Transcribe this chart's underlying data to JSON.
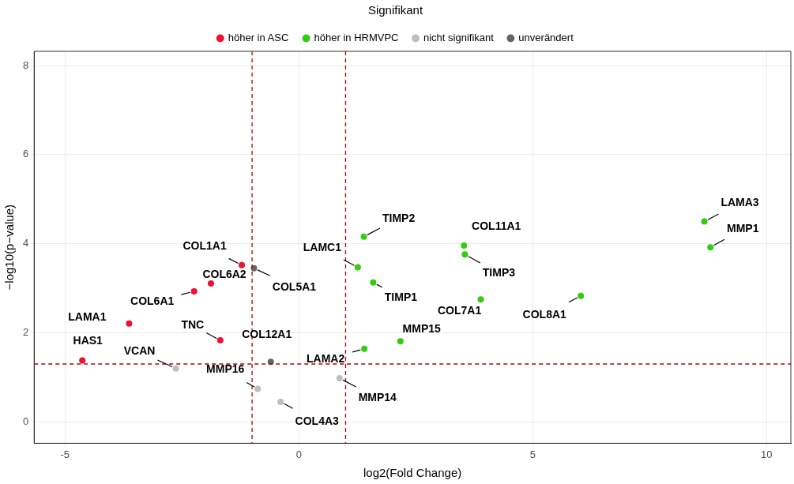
{
  "chart_data": {
    "type": "scatter",
    "xlabel": "log2(Fold Change)",
    "ylabel": "−log10(p−value)",
    "legend_title": "Signifikant",
    "legend": "top",
    "grid": true,
    "marker": "circle",
    "xlim": [
      -5.66,
      10.52
    ],
    "xticks": [
      -5,
      0,
      5,
      10
    ],
    "ylim": [
      -0.48,
      8.32
    ],
    "yticks": [
      0,
      2,
      4,
      6,
      8
    ],
    "series": [
      {
        "name": "höher in ASC",
        "color": "#ee1133",
        "x": [
          -1.22,
          -1.88,
          -2.24,
          -3.63,
          -1.68,
          -4.63
        ],
        "values": [
          3.52,
          3.11,
          2.93,
          2.21,
          1.83,
          1.38
        ]
      },
      {
        "name": "höher in HRMVPC",
        "color": "#33cc11",
        "x": [
          1.39,
          1.26,
          1.59,
          3.53,
          3.55,
          3.89,
          6.03,
          2.17,
          1.4,
          8.67,
          8.8
        ],
        "values": [
          4.16,
          3.47,
          3.13,
          3.96,
          3.76,
          2.75,
          2.83,
          1.81,
          1.64,
          4.5,
          3.92
        ]
      },
      {
        "name": "nicht signifikant",
        "color": "#bebebe",
        "x": [
          -2.63,
          -0.88,
          -0.39,
          0.87
        ],
        "values": [
          1.2,
          0.74,
          0.45,
          0.98
        ]
      },
      {
        "name": "unverändert",
        "color": "#666666",
        "x": [
          -0.96,
          -0.6
        ],
        "values": [
          3.45,
          1.35
        ]
      }
    ],
    "ref_lines": [
      {
        "axis": "x",
        "value": -1,
        "color": "#bb0000",
        "line_style": "dashed"
      },
      {
        "axis": "x",
        "value": 1,
        "color": "#bb0000",
        "line_style": "dashed"
      },
      {
        "axis": "y",
        "value": 1.3,
        "color": "#bb0000",
        "line_style": "dashed"
      }
    ],
    "annotations": [
      {
        "text": "COL1A1",
        "x": -1.22,
        "y": 3.52
      },
      {
        "text": "COL6A2",
        "x": -1.88,
        "y": 3.11
      },
      {
        "text": "COL6A1",
        "x": -2.24,
        "y": 2.93
      },
      {
        "text": "LAMA1",
        "x": -3.63,
        "y": 2.21
      },
      {
        "text": "TNC",
        "x": -1.68,
        "y": 1.83
      },
      {
        "text": "HAS1",
        "x": -4.63,
        "y": 1.38
      },
      {
        "text": "TIMP2",
        "x": 1.39,
        "y": 4.16
      },
      {
        "text": "LAMC1",
        "x": 1.26,
        "y": 3.47
      },
      {
        "text": "TIMP1",
        "x": 1.59,
        "y": 3.13
      },
      {
        "text": "COL11A1",
        "x": 3.53,
        "y": 3.96
      },
      {
        "text": "TIMP3",
        "x": 3.55,
        "y": 3.76
      },
      {
        "text": "COL7A1",
        "x": 3.89,
        "y": 2.75
      },
      {
        "text": "COL8A1",
        "x": 6.03,
        "y": 2.83
      },
      {
        "text": "MMP15",
        "x": 2.17,
        "y": 1.81
      },
      {
        "text": "LAMA2",
        "x": 1.4,
        "y": 1.64
      },
      {
        "text": "LAMA3",
        "x": 8.67,
        "y": 4.5
      },
      {
        "text": "MMP1",
        "x": 8.8,
        "y": 3.92
      },
      {
        "text": "VCAN",
        "x": -2.63,
        "y": 1.2
      },
      {
        "text": "MMP16",
        "x": -0.88,
        "y": 0.74
      },
      {
        "text": "COL4A3",
        "x": -0.39,
        "y": 0.45
      },
      {
        "text": "MMP14",
        "x": 0.87,
        "y": 0.98
      },
      {
        "text": "COL5A1",
        "x": -0.96,
        "y": 3.45
      },
      {
        "text": "COL12A1",
        "x": -0.6,
        "y": 1.35
      }
    ]
  }
}
